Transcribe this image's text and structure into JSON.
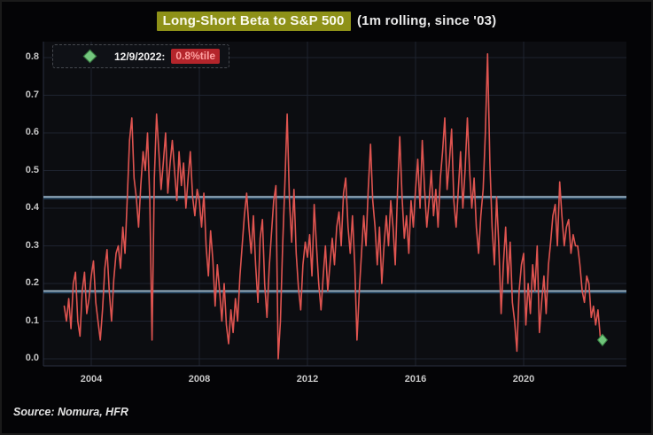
{
  "header": {
    "title_highlight": "Long-Short Beta to S&P 500",
    "title_suffix": "(1m rolling, since '03)",
    "highlight_color": "#8e9118"
  },
  "legend": {
    "marker_icon": "green-diamond-icon",
    "date_label": "12/9/2022:",
    "value_label": "0.8%tile",
    "badge_color": "#b4252b"
  },
  "footer": {
    "source": "Source: Nomura, HFR"
  },
  "chart_data": {
    "type": "line",
    "title": "Long-Short Beta to S&P 500 (1m rolling, since '03)",
    "xlabel": "",
    "ylabel": "",
    "x_start": {
      "year": 2003,
      "month": 1
    },
    "cadence": "monthly",
    "x_tick_years": [
      2004,
      2008,
      2012,
      2016,
      2020
    ],
    "x_tick_labels": [
      "2004",
      "2008",
      "2012",
      "2016",
      "2020"
    ],
    "y_ticks": [
      0.0,
      0.1,
      0.2,
      0.3,
      0.4,
      0.5,
      0.6,
      0.7,
      0.8
    ],
    "y_tick_labels": [
      "0.0",
      "0.1",
      "0.2",
      "0.3",
      "0.4",
      "0.5",
      "0.6",
      "0.7",
      "0.8"
    ],
    "ylim": [
      -0.02,
      0.85
    ],
    "xlim_years": [
      2002.25,
      2023.85
    ],
    "grid": true,
    "grid_color": "#1e2330",
    "plot_bg": "#0c0d11",
    "reference_lines": [
      {
        "value": 0.43,
        "color": "#a6c4da"
      },
      {
        "value": 0.18,
        "color": "#a6c4da"
      }
    ],
    "series": [
      {
        "name": "Long-Short beta to S&P 500 (1m rolling)",
        "color": "#df5450",
        "values": [
          0.14,
          0.1,
          0.16,
          0.08,
          0.2,
          0.23,
          0.1,
          0.06,
          0.18,
          0.23,
          0.12,
          0.16,
          0.22,
          0.26,
          0.15,
          0.1,
          0.05,
          0.13,
          0.24,
          0.29,
          0.18,
          0.1,
          0.21,
          0.28,
          0.3,
          0.24,
          0.35,
          0.28,
          0.43,
          0.58,
          0.64,
          0.48,
          0.43,
          0.35,
          0.46,
          0.55,
          0.5,
          0.6,
          0.42,
          0.05,
          0.48,
          0.65,
          0.55,
          0.45,
          0.52,
          0.6,
          0.44,
          0.52,
          0.58,
          0.5,
          0.42,
          0.55,
          0.46,
          0.52,
          0.4,
          0.48,
          0.55,
          0.43,
          0.38,
          0.45,
          0.42,
          0.35,
          0.44,
          0.3,
          0.22,
          0.34,
          0.26,
          0.14,
          0.25,
          0.18,
          0.1,
          0.2,
          0.09,
          0.04,
          0.13,
          0.07,
          0.16,
          0.1,
          0.22,
          0.3,
          0.38,
          0.44,
          0.35,
          0.28,
          0.38,
          0.25,
          0.15,
          0.32,
          0.37,
          0.2,
          0.11,
          0.24,
          0.33,
          0.42,
          0.46,
          0.0,
          0.1,
          0.3,
          0.47,
          0.65,
          0.42,
          0.31,
          0.45,
          0.28,
          0.19,
          0.13,
          0.25,
          0.31,
          0.27,
          0.33,
          0.22,
          0.41,
          0.3,
          0.2,
          0.13,
          0.22,
          0.3,
          0.18,
          0.25,
          0.32,
          0.25,
          0.35,
          0.39,
          0.3,
          0.44,
          0.48,
          0.35,
          0.28,
          0.38,
          0.25,
          0.05,
          0.18,
          0.28,
          0.38,
          0.3,
          0.45,
          0.57,
          0.42,
          0.35,
          0.25,
          0.35,
          0.2,
          0.3,
          0.38,
          0.3,
          0.42,
          0.35,
          0.25,
          0.45,
          0.59,
          0.43,
          0.32,
          0.38,
          0.28,
          0.42,
          0.35,
          0.45,
          0.53,
          0.4,
          0.58,
          0.45,
          0.35,
          0.42,
          0.5,
          0.38,
          0.45,
          0.35,
          0.48,
          0.55,
          0.64,
          0.45,
          0.52,
          0.61,
          0.42,
          0.35,
          0.45,
          0.55,
          0.4,
          0.5,
          0.64,
          0.5,
          0.4,
          0.48,
          0.35,
          0.28,
          0.38,
          0.45,
          0.6,
          0.81,
          0.52,
          0.35,
          0.25,
          0.43,
          0.3,
          0.12,
          0.25,
          0.35,
          0.2,
          0.31,
          0.15,
          0.1,
          0.02,
          0.18,
          0.25,
          0.28,
          0.09,
          0.2,
          0.12,
          0.25,
          0.18,
          0.3,
          0.07,
          0.15,
          0.22,
          0.12,
          0.25,
          0.31,
          0.38,
          0.41,
          0.3,
          0.47,
          0.38,
          0.3,
          0.35,
          0.37,
          0.28,
          0.33,
          0.3,
          0.3,
          0.25,
          0.18,
          0.15,
          0.22,
          0.2,
          0.11,
          0.14,
          0.09,
          0.13,
          0.06,
          0.05
        ]
      }
    ],
    "end_marker": {
      "shape": "diamond",
      "color": "#6fc47a",
      "stroke": "#377d43",
      "date": "12/9/2022",
      "value": 0.05,
      "annotation": "0.8%tile"
    },
    "legend_position": "top-left"
  }
}
